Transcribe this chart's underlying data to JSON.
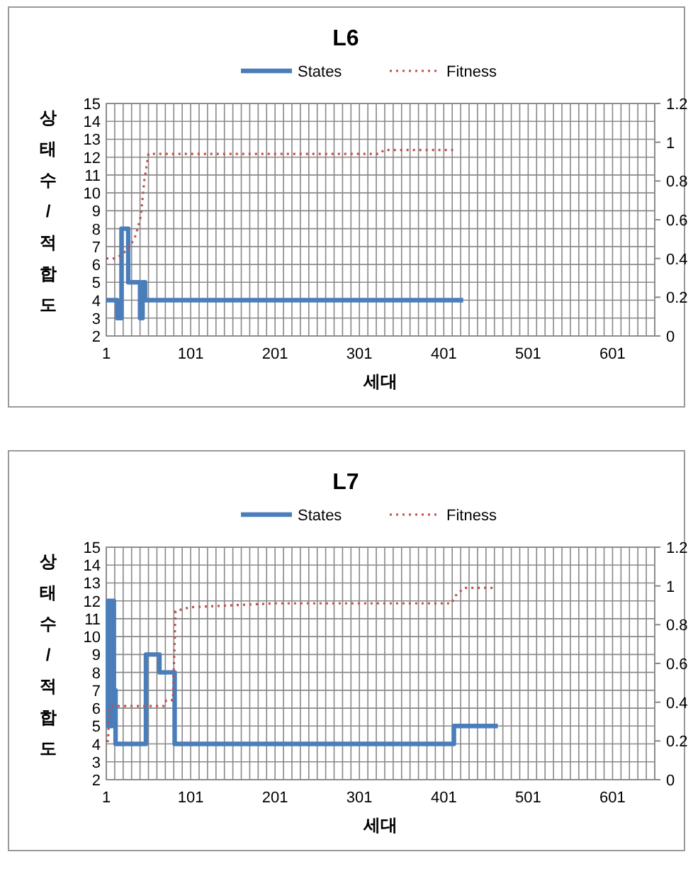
{
  "chart_data": [
    {
      "type": "line",
      "title": "L6",
      "xlabel": "세대",
      "ylabel": "상태수/적합도",
      "legend": "top",
      "grid": true,
      "xlim": [
        1,
        651
      ],
      "xticks": [
        1,
        {
          "value": 11,
          "label": null
        },
        {
          "value": 21,
          "label": null
        },
        {
          "value": 31,
          "label": null
        },
        {
          "value": 41,
          "label": null
        },
        {
          "value": 51,
          "label": null
        },
        {
          "value": 61,
          "label": null
        },
        {
          "value": 71,
          "label": null
        },
        {
          "value": 81,
          "label": null
        },
        {
          "value": 91,
          "label": null
        },
        101,
        {
          "value": 111,
          "label": null
        },
        {
          "value": 121,
          "label": null
        },
        {
          "value": 131,
          "label": null
        },
        {
          "value": 141,
          "label": null
        },
        {
          "value": 151,
          "label": null
        },
        {
          "value": 161,
          "label": null
        },
        {
          "value": 171,
          "label": null
        },
        {
          "value": 181,
          "label": null
        },
        {
          "value": 191,
          "label": null
        },
        201,
        {
          "value": 211,
          "label": null
        },
        {
          "value": 221,
          "label": null
        },
        {
          "value": 231,
          "label": null
        },
        {
          "value": 241,
          "label": null
        },
        {
          "value": 251,
          "label": null
        },
        {
          "value": 261,
          "label": null
        },
        {
          "value": 271,
          "label": null
        },
        {
          "value": 281,
          "label": null
        },
        {
          "value": 291,
          "label": null
        },
        301,
        {
          "value": 311,
          "label": null
        },
        {
          "value": 321,
          "label": null
        },
        {
          "value": 331,
          "label": null
        },
        {
          "value": 341,
          "label": null
        },
        {
          "value": 351,
          "label": null
        },
        {
          "value": 361,
          "label": null
        },
        {
          "value": 371,
          "label": null
        },
        {
          "value": 381,
          "label": null
        },
        {
          "value": 391,
          "label": null
        },
        401,
        {
          "value": 411,
          "label": null
        },
        {
          "value": 421,
          "label": null
        },
        {
          "value": 431,
          "label": null
        },
        {
          "value": 441,
          "label": null
        },
        {
          "value": 451,
          "label": null
        },
        {
          "value": 461,
          "label": null
        },
        {
          "value": 471,
          "label": null
        },
        {
          "value": 481,
          "label": null
        },
        {
          "value": 491,
          "label": null
        },
        501,
        {
          "value": 511,
          "label": null
        },
        {
          "value": 521,
          "label": null
        },
        {
          "value": 531,
          "label": null
        },
        {
          "value": 541,
          "label": null
        },
        {
          "value": 551,
          "label": null
        },
        {
          "value": 561,
          "label": null
        },
        {
          "value": 571,
          "label": null
        },
        {
          "value": 581,
          "label": null
        },
        {
          "value": 591,
          "label": null
        },
        601,
        {
          "value": 611,
          "label": null
        },
        {
          "value": 621,
          "label": null
        },
        {
          "value": 631,
          "label": null
        },
        {
          "value": 641,
          "label": null
        },
        {
          "value": 651,
          "label": null
        }
      ],
      "ylim": [
        2,
        15
      ],
      "yticks": [
        2,
        3,
        4,
        5,
        6,
        7,
        8,
        9,
        10,
        11,
        12,
        13,
        14,
        15
      ],
      "y2lim": [
        0,
        1.2
      ],
      "y2ticks": [
        0,
        0.2,
        0.4,
        0.6,
        0.8,
        1,
        1.2
      ],
      "series": [
        {
          "name": "States",
          "color": "#4a7ebb",
          "line_style": "solid",
          "x": [
            1,
            14,
            14,
            19,
            19,
            27,
            27,
            38,
            38,
            41,
            41,
            44,
            44,
            47,
            47,
            424
          ],
          "values": [
            4,
            4,
            3,
            3,
            8,
            8,
            5,
            5,
            5,
            5,
            3,
            3,
            5,
            5,
            4,
            4
          ]
        },
        {
          "name": "Fitness",
          "color": "#c0504d",
          "line_style": "dotted",
          "axis": "y2",
          "x": [
            1,
            10,
            20,
            30,
            36,
            42,
            46,
            51,
            325,
            330,
            412
          ],
          "values": [
            0.4,
            0.4,
            0.42,
            0.47,
            0.52,
            0.62,
            0.8,
            0.94,
            0.94,
            0.96,
            0.96
          ]
        }
      ]
    },
    {
      "type": "line",
      "title": "L7",
      "xlabel": "세대",
      "ylabel": "상태수/적합도",
      "legend": "top",
      "grid": true,
      "xlim": [
        1,
        651
      ],
      "xticks": [
        1,
        {
          "value": 11,
          "label": null
        },
        {
          "value": 21,
          "label": null
        },
        {
          "value": 31,
          "label": null
        },
        {
          "value": 41,
          "label": null
        },
        {
          "value": 51,
          "label": null
        },
        {
          "value": 61,
          "label": null
        },
        {
          "value": 71,
          "label": null
        },
        {
          "value": 81,
          "label": null
        },
        {
          "value": 91,
          "label": null
        },
        101,
        {
          "value": 111,
          "label": null
        },
        {
          "value": 121,
          "label": null
        },
        {
          "value": 131,
          "label": null
        },
        {
          "value": 141,
          "label": null
        },
        {
          "value": 151,
          "label": null
        },
        {
          "value": 161,
          "label": null
        },
        {
          "value": 171,
          "label": null
        },
        {
          "value": 181,
          "label": null
        },
        {
          "value": 191,
          "label": null
        },
        201,
        {
          "value": 211,
          "label": null
        },
        {
          "value": 221,
          "label": null
        },
        {
          "value": 231,
          "label": null
        },
        {
          "value": 241,
          "label": null
        },
        {
          "value": 251,
          "label": null
        },
        {
          "value": 261,
          "label": null
        },
        {
          "value": 271,
          "label": null
        },
        {
          "value": 281,
          "label": null
        },
        {
          "value": 291,
          "label": null
        },
        301,
        {
          "value": 311,
          "label": null
        },
        {
          "value": 321,
          "label": null
        },
        {
          "value": 331,
          "label": null
        },
        {
          "value": 341,
          "label": null
        },
        {
          "value": 351,
          "label": null
        },
        {
          "value": 361,
          "label": null
        },
        {
          "value": 371,
          "label": null
        },
        {
          "value": 381,
          "label": null
        },
        {
          "value": 391,
          "label": null
        },
        401,
        {
          "value": 411,
          "label": null
        },
        {
          "value": 421,
          "label": null
        },
        {
          "value": 431,
          "label": null
        },
        {
          "value": 441,
          "label": null
        },
        {
          "value": 451,
          "label": null
        },
        {
          "value": 461,
          "label": null
        },
        {
          "value": 471,
          "label": null
        },
        {
          "value": 481,
          "label": null
        },
        {
          "value": 491,
          "label": null
        },
        501,
        {
          "value": 511,
          "label": null
        },
        {
          "value": 521,
          "label": null
        },
        {
          "value": 531,
          "label": null
        },
        {
          "value": 541,
          "label": null
        },
        {
          "value": 551,
          "label": null
        },
        {
          "value": 561,
          "label": null
        },
        {
          "value": 571,
          "label": null
        },
        {
          "value": 581,
          "label": null
        },
        {
          "value": 591,
          "label": null
        },
        601,
        {
          "value": 611,
          "label": null
        },
        {
          "value": 621,
          "label": null
        },
        {
          "value": 631,
          "label": null
        },
        {
          "value": 641,
          "label": null
        },
        {
          "value": 651,
          "label": null
        }
      ],
      "ylim": [
        2,
        15
      ],
      "yticks": [
        2,
        3,
        4,
        5,
        6,
        7,
        8,
        9,
        10,
        11,
        12,
        13,
        14,
        15
      ],
      "y2lim": [
        0,
        1.2
      ],
      "y2ticks": [
        0,
        0.2,
        0.4,
        0.6,
        0.8,
        1,
        1.2
      ],
      "series": [
        {
          "name": "States",
          "color": "#4a7ebb",
          "line_style": "solid",
          "x": [
            1,
            3,
            3,
            6,
            6,
            8,
            8,
            10,
            10,
            12,
            12,
            42,
            42,
            48,
            48,
            62,
            62,
            64,
            64,
            80,
            80,
            82,
            82,
            411,
            411,
            413,
            413,
            465
          ],
          "values": [
            5,
            5,
            12,
            12,
            5,
            5,
            12,
            12,
            7,
            7,
            4,
            4,
            4,
            4,
            9,
            9,
            9,
            9,
            8,
            8,
            8,
            8,
            4,
            4,
            4,
            4,
            5,
            5
          ]
        },
        {
          "name": "Fitness",
          "color": "#c0504d",
          "line_style": "dotted",
          "axis": "y2",
          "x": [
            1,
            3,
            5,
            70,
            72,
            80,
            83,
            100,
            200,
            410,
            415,
            425,
            460
          ],
          "values": [
            0.2,
            0.2,
            0.38,
            0.38,
            0.41,
            0.41,
            0.87,
            0.89,
            0.91,
            0.91,
            0.95,
            0.99,
            0.99
          ]
        }
      ]
    }
  ]
}
